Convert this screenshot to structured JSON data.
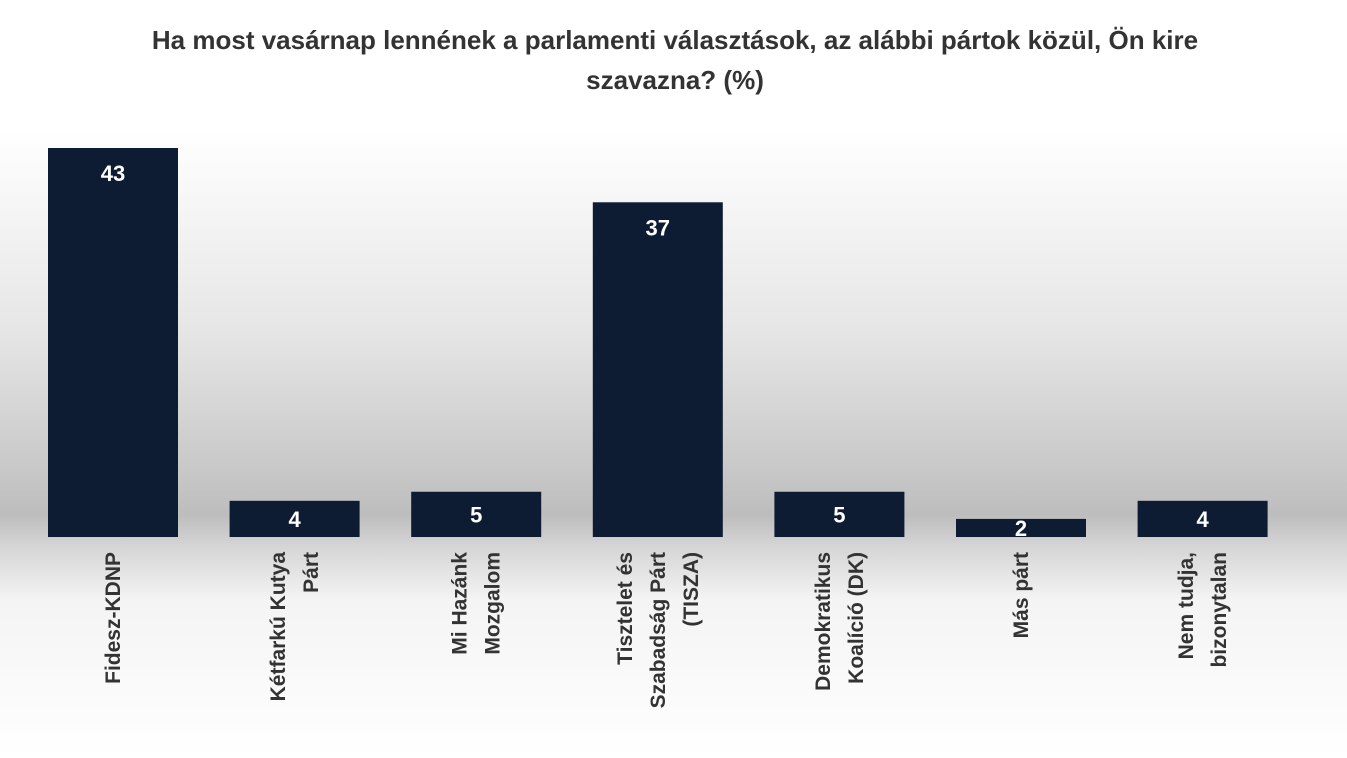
{
  "chart_data": {
    "type": "bar",
    "title": "Ha most vasárnap lennének a parlamenti választások, az alábbi pártok közül, Ön kire szavazna? (%)",
    "categories": [
      "Fidesz-KDNP",
      "Kétfarkú Kutya\nPárt",
      "Mi Hazánk\nMozgalom",
      "Tisztelet és\nSzabadság Párt\n(TISZA)",
      "Demokratikus\nKoalíció (DK)",
      "Más párt",
      "Nem tudja,\nbizonytalan"
    ],
    "values": [
      43,
      4,
      5,
      37,
      5,
      2,
      4
    ],
    "color": "#0d1b33"
  }
}
